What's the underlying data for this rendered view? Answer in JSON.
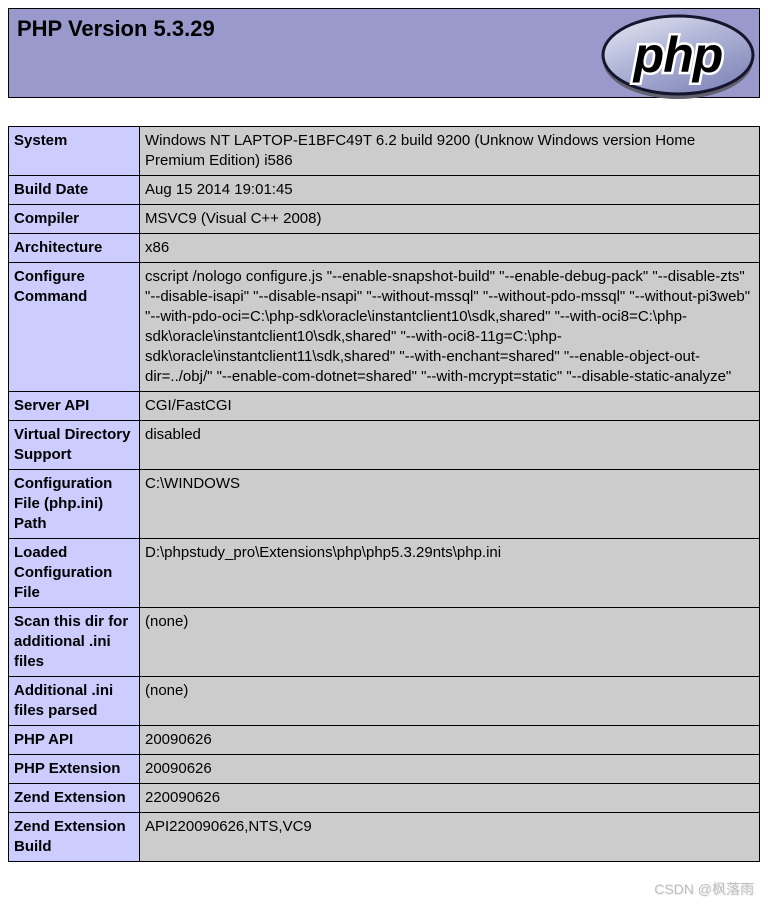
{
  "header": {
    "title": "PHP Version 5.3.29",
    "logo_text": "php"
  },
  "info_table": {
    "rows": [
      {
        "label": "System",
        "value": "Windows NT LAPTOP-E1BFC49T 6.2 build 9200 (Unknow Windows version Home Premium Edition) i586"
      },
      {
        "label": "Build Date",
        "value": "Aug 15 2014 19:01:45"
      },
      {
        "label": "Compiler",
        "value": "MSVC9 (Visual C++ 2008)"
      },
      {
        "label": "Architecture",
        "value": "x86"
      },
      {
        "label": "Configure Command",
        "value": "cscript /nologo configure.js \"--enable-snapshot-build\" \"--enable-debug-pack\" \"--disable-zts\" \"--disable-isapi\" \"--disable-nsapi\" \"--without-mssql\" \"--without-pdo-mssql\" \"--without-pi3web\" \"--with-pdo-oci=C:\\php-sdk\\oracle\\instantclient10\\sdk,shared\" \"--with-oci8=C:\\php-sdk\\oracle\\instantclient10\\sdk,shared\" \"--with-oci8-11g=C:\\php-sdk\\oracle\\instantclient11\\sdk,shared\" \"--with-enchant=shared\" \"--enable-object-out-dir=../obj/\" \"--enable-com-dotnet=shared\" \"--with-mcrypt=static\" \"--disable-static-analyze\""
      },
      {
        "label": "Server API",
        "value": "CGI/FastCGI"
      },
      {
        "label": "Virtual Directory Support",
        "value": "disabled"
      },
      {
        "label": "Configuration File (php.ini) Path",
        "value": "C:\\WINDOWS"
      },
      {
        "label": "Loaded Configuration File",
        "value": "D:\\phpstudy_pro\\Extensions\\php\\php5.3.29nts\\php.ini"
      },
      {
        "label": "Scan this dir for additional .ini files",
        "value": "(none)"
      },
      {
        "label": "Additional .ini files parsed",
        "value": "(none)"
      },
      {
        "label": "PHP API",
        "value": "20090626"
      },
      {
        "label": "PHP Extension",
        "value": "20090626"
      },
      {
        "label": "Zend Extension",
        "value": "220090626"
      },
      {
        "label": "Zend Extension Build",
        "value": "API220090626,NTS,VC9"
      }
    ]
  },
  "watermark": {
    "text": "CSDN @枫落雨"
  },
  "colors": {
    "header_bg": "#9999cc",
    "label_bg": "#ccccff",
    "value_bg": "#cccccc",
    "border": "#000000"
  }
}
